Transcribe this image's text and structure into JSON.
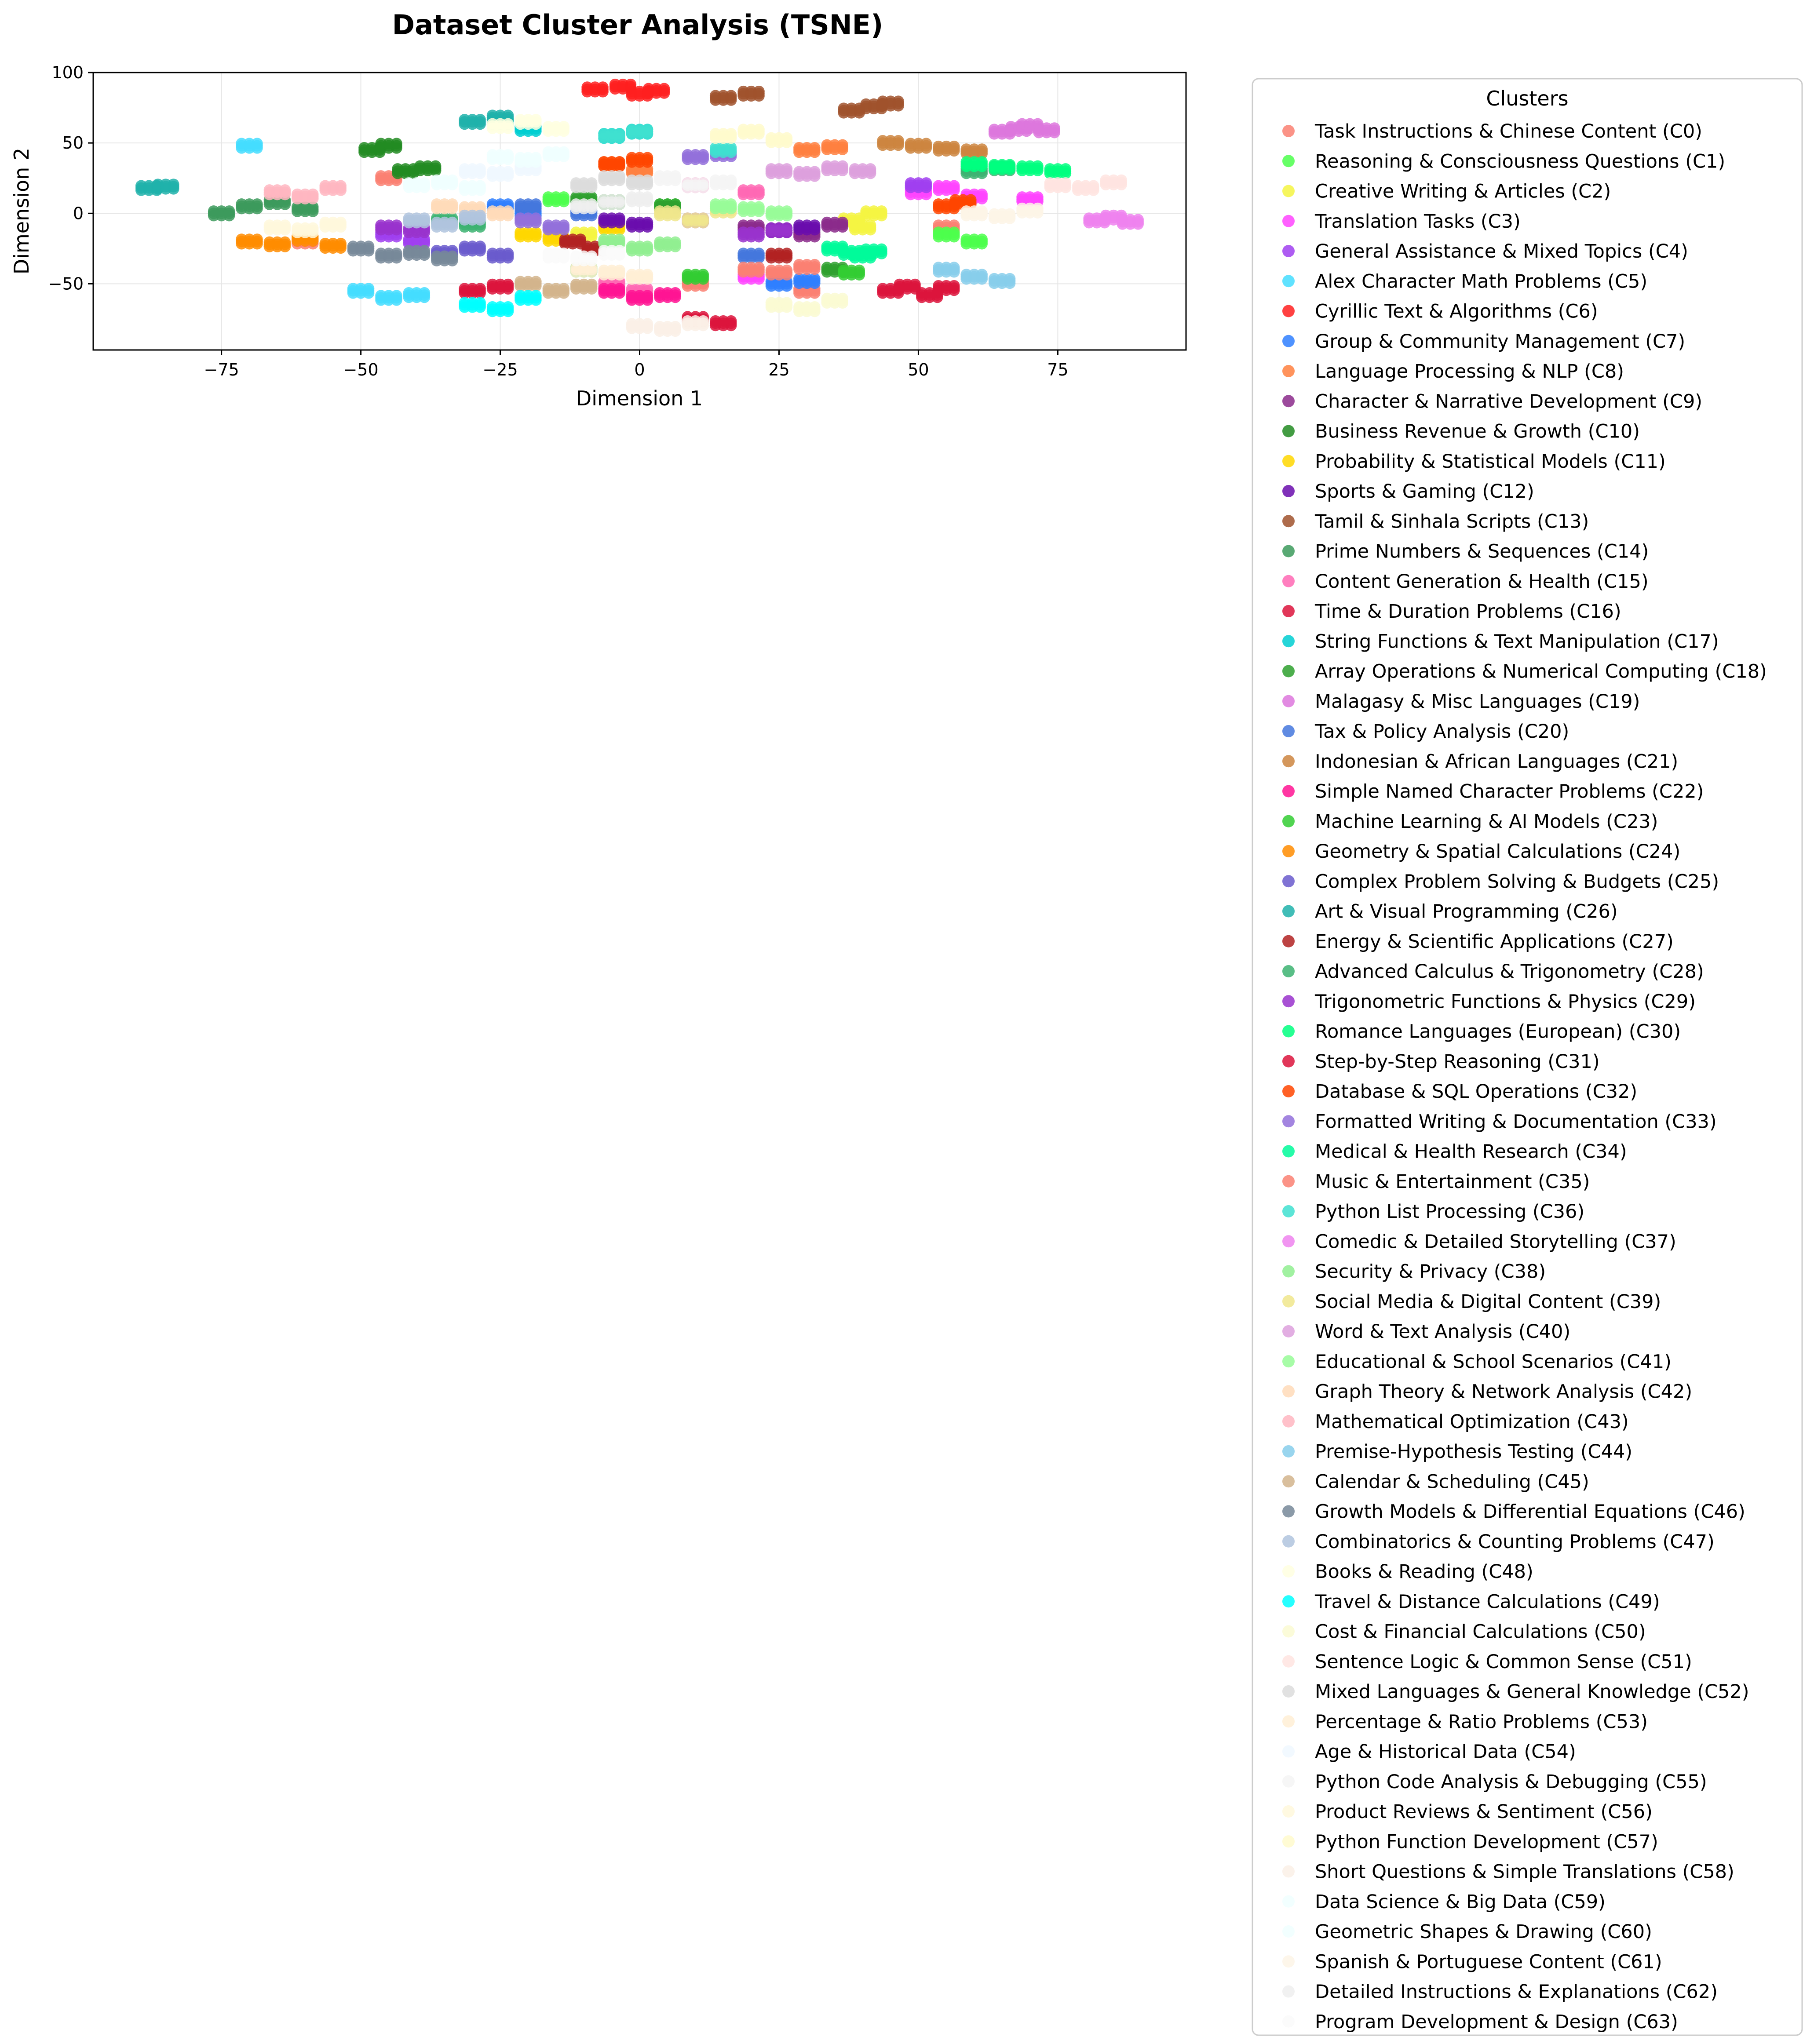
{
  "chart_data": {
    "type": "scatter",
    "title": "Dataset Cluster Analysis (TSNE)",
    "xlabel": "Dimension 1",
    "ylabel": "Dimension 2",
    "xlim": [
      -98,
      98
    ],
    "ylim": [
      -97,
      100
    ],
    "xticks": [
      -75,
      -50,
      -25,
      0,
      25,
      50,
      75
    ],
    "yticks": [
      -50,
      0,
      50,
      100
    ],
    "xtick_labels": [
      "−75",
      "−50",
      "−25",
      "0",
      "25",
      "50",
      "75"
    ],
    "ytick_labels": [
      "−50",
      "0",
      "50",
      "100"
    ],
    "grid": true,
    "legend": {
      "title": "Clusters",
      "placement": "outside-right"
    },
    "series": [
      {
        "name": "Task Instructions & Chinese Content (C0)",
        "color": "#fa8072",
        "x": [
          -60,
          -45,
          10,
          30,
          55
        ],
        "y": [
          -20,
          25,
          -50,
          -55,
          -10
        ]
      },
      {
        "name": "Reasoning & Consciousness Questions (C1)",
        "color": "#4cff4c",
        "x": [
          -15,
          5,
          55,
          60
        ],
        "y": [
          10,
          5,
          -15,
          -20
        ]
      },
      {
        "name": "Creative Writing & Articles (C2)",
        "color": "#f5f542",
        "x": [
          38,
          40,
          42,
          -10
        ],
        "y": [
          -5,
          -10,
          0,
          -15
        ]
      },
      {
        "name": "Translation Tasks (C3)",
        "color": "#ff44ff",
        "x": [
          50,
          55,
          60,
          70,
          20
        ],
        "y": [
          15,
          18,
          12,
          10,
          -45
        ]
      },
      {
        "name": "General Assistance & Mixed Topics (C4)",
        "color": "#a040f0",
        "x": [
          -45,
          -40,
          10,
          50
        ],
        "y": [
          -15,
          -20,
          -5,
          20
        ]
      },
      {
        "name": "Alex Character Math Problems (C5)",
        "color": "#44ddff",
        "x": [
          -50,
          -45,
          -40,
          -70
        ],
        "y": [
          -55,
          -60,
          -58,
          48
        ]
      },
      {
        "name": "Cyrillic Text & Algorithms (C6)",
        "color": "#ff2020",
        "x": [
          -8,
          -3,
          0,
          3
        ],
        "y": [
          88,
          90,
          85,
          87
        ]
      },
      {
        "name": "Group & Community Management (C7)",
        "color": "#2f7fff",
        "x": [
          -25,
          -20,
          25,
          30
        ],
        "y": [
          5,
          0,
          -50,
          -48
        ]
      },
      {
        "name": "Language Processing & NLP (C8)",
        "color": "#ff8040",
        "x": [
          -5,
          0,
          30,
          35
        ],
        "y": [
          35,
          30,
          45,
          47
        ]
      },
      {
        "name": "Character & Narrative Development (C9)",
        "color": "#8b2a8b",
        "x": [
          20,
          25,
          30,
          35
        ],
        "y": [
          -10,
          -12,
          -15,
          -8
        ]
      },
      {
        "name": "Business Revenue & Growth (C10)",
        "color": "#228b22",
        "x": [
          -48,
          -45,
          -42,
          -38
        ],
        "y": [
          45,
          48,
          30,
          32
        ]
      },
      {
        "name": "Probability & Statistical Models (C11)",
        "color": "#ffd700",
        "x": [
          -20,
          -15,
          -5
        ],
        "y": [
          -15,
          -18,
          -10
        ]
      },
      {
        "name": "Sports & Gaming (C12)",
        "color": "#6a0dad",
        "x": [
          -5,
          0,
          25,
          30
        ],
        "y": [
          -5,
          -8,
          -12,
          -10
        ]
      },
      {
        "name": "Tamil & Sinhala Scripts (C13)",
        "color": "#a0522d",
        "x": [
          15,
          20,
          38,
          42,
          45
        ],
        "y": [
          82,
          85,
          73,
          76,
          78
        ]
      },
      {
        "name": "Prime Numbers & Sequences (C14)",
        "color": "#3c9a5c",
        "x": [
          -75,
          -70,
          -65,
          -60
        ],
        "y": [
          0,
          5,
          8,
          3
        ]
      },
      {
        "name": "Content Generation & Health (C15)",
        "color": "#ff69b4",
        "x": [
          -5,
          0,
          10,
          20
        ],
        "y": [
          -50,
          -55,
          20,
          15
        ]
      },
      {
        "name": "Time & Duration Problems (C16)",
        "color": "#dc143c",
        "x": [
          45,
          48,
          52,
          55
        ],
        "y": [
          -55,
          -52,
          -58,
          -53
        ]
      },
      {
        "name": "String Functions & Text Manipulation (C17)",
        "color": "#00ced1",
        "x": [
          -25,
          -20,
          -5,
          0
        ],
        "y": [
          65,
          60,
          55,
          58
        ]
      },
      {
        "name": "Array Operations & Numerical Computing (C18)",
        "color": "#2ea02e",
        "x": [
          -10,
          -5,
          5,
          35
        ],
        "y": [
          10,
          8,
          5,
          -40
        ]
      },
      {
        "name": "Malagasy & Misc Languages (C19)",
        "color": "#dd77dd",
        "x": [
          65,
          68,
          70,
          73
        ],
        "y": [
          58,
          60,
          62,
          59
        ]
      },
      {
        "name": "Tax & Policy Analysis (C20)",
        "color": "#4477dd",
        "x": [
          -20,
          -10,
          20
        ],
        "y": [
          5,
          0,
          -30
        ]
      },
      {
        "name": "Indonesian & African Languages (C21)",
        "color": "#cd853f",
        "x": [
          45,
          50,
          55,
          60
        ],
        "y": [
          50,
          48,
          46,
          44
        ]
      },
      {
        "name": "Simple Named Character Problems (C22)",
        "color": "#ff1493",
        "x": [
          -5,
          0,
          5
        ],
        "y": [
          -55,
          -60,
          -58
        ]
      },
      {
        "name": "Machine Learning & AI Models (C23)",
        "color": "#32cd32",
        "x": [
          -10,
          10,
          38
        ],
        "y": [
          -40,
          -45,
          -42
        ]
      },
      {
        "name": "Geometry & Spatial Calculations (C24)",
        "color": "#ff8c00",
        "x": [
          -70,
          -65,
          -60,
          -55
        ],
        "y": [
          -20,
          -22,
          -18,
          -23
        ]
      },
      {
        "name": "Complex Problem Solving & Budgets (C25)",
        "color": "#6a5acd",
        "x": [
          -30,
          -25,
          -35
        ],
        "y": [
          -25,
          -30,
          -28
        ]
      },
      {
        "name": "Art & Visual Programming (C26)",
        "color": "#20b2aa",
        "x": [
          -88,
          -85,
          -30,
          -25
        ],
        "y": [
          18,
          19,
          65,
          68
        ]
      },
      {
        "name": "Energy & Scientific Applications (C27)",
        "color": "#b22222",
        "x": [
          -12,
          -8,
          25
        ],
        "y": [
          -20,
          -25,
          -30
        ]
      },
      {
        "name": "Advanced Calculus & Trigonometry (C28)",
        "color": "#3cb371",
        "x": [
          -35,
          -30,
          60,
          65
        ],
        "y": [
          -5,
          -8,
          30,
          32
        ]
      },
      {
        "name": "Trigonometric Functions & Physics (C29)",
        "color": "#9932cc",
        "x": [
          -45,
          -40,
          20,
          25
        ],
        "y": [
          -10,
          -12,
          -15,
          -12
        ]
      },
      {
        "name": "Romance Languages (European) (C30)",
        "color": "#00ff7f",
        "x": [
          60,
          65,
          70,
          75
        ],
        "y": [
          35,
          33,
          32,
          30
        ]
      },
      {
        "name": "Step-by-Step Reasoning (C31)",
        "color": "#dc143c",
        "x": [
          -30,
          -25,
          10,
          15
        ],
        "y": [
          -55,
          -52,
          -75,
          -78
        ]
      },
      {
        "name": "Database & SQL Operations (C32)",
        "color": "#ff4500",
        "x": [
          -5,
          0,
          55,
          58
        ],
        "y": [
          35,
          38,
          5,
          8
        ]
      },
      {
        "name": "Formatted Writing & Documentation (C33)",
        "color": "#9370db",
        "x": [
          -20,
          -15,
          10,
          15
        ],
        "y": [
          -5,
          -10,
          40,
          42
        ]
      },
      {
        "name": "Medical & Health Research (C34)",
        "color": "#00fa9a",
        "x": [
          35,
          38,
          40,
          42
        ],
        "y": [
          -25,
          -28,
          -30,
          -27
        ]
      },
      {
        "name": "Music & Entertainment (C35)",
        "color": "#fa8072",
        "x": [
          20,
          25,
          30
        ],
        "y": [
          -40,
          -42,
          -38
        ]
      },
      {
        "name": "Python List Processing (C36)",
        "color": "#40e0d0",
        "x": [
          -5,
          0,
          15
        ],
        "y": [
          55,
          58,
          45
        ]
      },
      {
        "name": "Comedic & Detailed Storytelling (C37)",
        "color": "#ee82ee",
        "x": [
          82,
          85,
          88
        ],
        "y": [
          -5,
          -3,
          -6
        ]
      },
      {
        "name": "Security & Privacy (C38)",
        "color": "#90ee90",
        "x": [
          -5,
          0,
          5
        ],
        "y": [
          -20,
          -25,
          -22
        ]
      },
      {
        "name": "Social Media & Digital Content (C39)",
        "color": "#f0e68c",
        "x": [
          5,
          10,
          15
        ],
        "y": [
          0,
          -5,
          2
        ]
      },
      {
        "name": "Word & Text Analysis (C40)",
        "color": "#dda0dd",
        "x": [
          25,
          30,
          35,
          40
        ],
        "y": [
          30,
          28,
          32,
          30
        ]
      },
      {
        "name": "Educational & School Scenarios (C41)",
        "color": "#98fb98",
        "x": [
          15,
          20,
          25
        ],
        "y": [
          5,
          3,
          0
        ]
      },
      {
        "name": "Graph Theory & Network Analysis (C42)",
        "color": "#ffdab9",
        "x": [
          -35,
          -30,
          -25
        ],
        "y": [
          5,
          3,
          0
        ]
      },
      {
        "name": "Mathematical Optimization (C43)",
        "color": "#ffb6c1",
        "x": [
          -65,
          -60,
          -55
        ],
        "y": [
          15,
          12,
          18
        ]
      },
      {
        "name": "Premise-Hypothesis Testing (C44)",
        "color": "#87ceeb",
        "x": [
          55,
          60,
          65
        ],
        "y": [
          -40,
          -45,
          -48
        ]
      },
      {
        "name": "Calendar & Scheduling (C45)",
        "color": "#d2b48c",
        "x": [
          -20,
          -15,
          -10
        ],
        "y": [
          -50,
          -55,
          -52
        ]
      },
      {
        "name": "Growth Models & Differential Equations (C46)",
        "color": "#778899",
        "x": [
          -50,
          -45,
          -40,
          -35
        ],
        "y": [
          -25,
          -30,
          -28,
          -32
        ]
      },
      {
        "name": "Combinatorics & Counting Problems (C47)",
        "color": "#b0c4de",
        "x": [
          -40,
          -35,
          -30
        ],
        "y": [
          -5,
          -8,
          -3
        ]
      },
      {
        "name": "Books & Reading (C48)",
        "color": "#ffffe0",
        "x": [
          -25,
          -20,
          -15
        ],
        "y": [
          62,
          65,
          60
        ]
      },
      {
        "name": "Travel & Distance Calculations (C49)",
        "color": "#00ffff",
        "x": [
          -30,
          -25,
          -20
        ],
        "y": [
          -65,
          -68,
          -60
        ]
      },
      {
        "name": "Cost & Financial Calculations (C50)",
        "color": "#fafad2",
        "x": [
          25,
          30,
          35
        ],
        "y": [
          -65,
          -68,
          -62
        ]
      },
      {
        "name": "Sentence Logic & Common Sense (C51)",
        "color": "#ffe4e1",
        "x": [
          75,
          80,
          85
        ],
        "y": [
          20,
          18,
          22
        ]
      },
      {
        "name": "Mixed Languages & General Knowledge (C52)",
        "color": "#dcdcdc",
        "x": [
          -10,
          -5,
          0
        ],
        "y": [
          20,
          25,
          22
        ]
      },
      {
        "name": "Percentage & Ratio Problems (C53)",
        "color": "#ffefd5",
        "x": [
          -10,
          -5,
          0
        ],
        "y": [
          -40,
          -42,
          -45
        ]
      },
      {
        "name": "Age & Historical Data (C54)",
        "color": "#f0f8ff",
        "x": [
          -30,
          -25,
          -20
        ],
        "y": [
          30,
          28,
          32
        ]
      },
      {
        "name": "Python Code Analysis & Debugging (C55)",
        "color": "#f5f5f5",
        "x": [
          5,
          10,
          15
        ],
        "y": [
          25,
          20,
          22
        ]
      },
      {
        "name": "Product Reviews & Sentiment (C56)",
        "color": "#fff8dc",
        "x": [
          -65,
          -60,
          -55
        ],
        "y": [
          -10,
          -12,
          -8
        ]
      },
      {
        "name": "Python Function Development (C57)",
        "color": "#fffacd",
        "x": [
          15,
          20,
          25
        ],
        "y": [
          55,
          58,
          52
        ]
      },
      {
        "name": "Short Questions & Simple Translations (C58)",
        "color": "#faf0e6",
        "x": [
          0,
          5,
          10
        ],
        "y": [
          -80,
          -82,
          -78
        ]
      },
      {
        "name": "Data Science & Big Data (C59)",
        "color": "#f0ffff",
        "x": [
          -40,
          -35,
          -30
        ],
        "y": [
          20,
          22,
          18
        ]
      },
      {
        "name": "Geometric Shapes & Drawing (C60)",
        "color": "#f0ffff",
        "x": [
          -25,
          -20,
          -15
        ],
        "y": [
          40,
          38,
          42
        ]
      },
      {
        "name": "Spanish & Portuguese Content (C61)",
        "color": "#fdf5e6",
        "x": [
          60,
          65,
          70
        ],
        "y": [
          0,
          -2,
          2
        ]
      },
      {
        "name": "Detailed Instructions & Explanations (C62)",
        "color": "#eeeeee",
        "x": [
          -10,
          -5,
          0
        ],
        "y": [
          5,
          8,
          10
        ]
      },
      {
        "name": "Program Development & Design (C63)",
        "color": "#fafafa",
        "x": [
          -15,
          -10,
          -5
        ],
        "y": [
          -30,
          -32,
          -28
        ]
      }
    ]
  }
}
